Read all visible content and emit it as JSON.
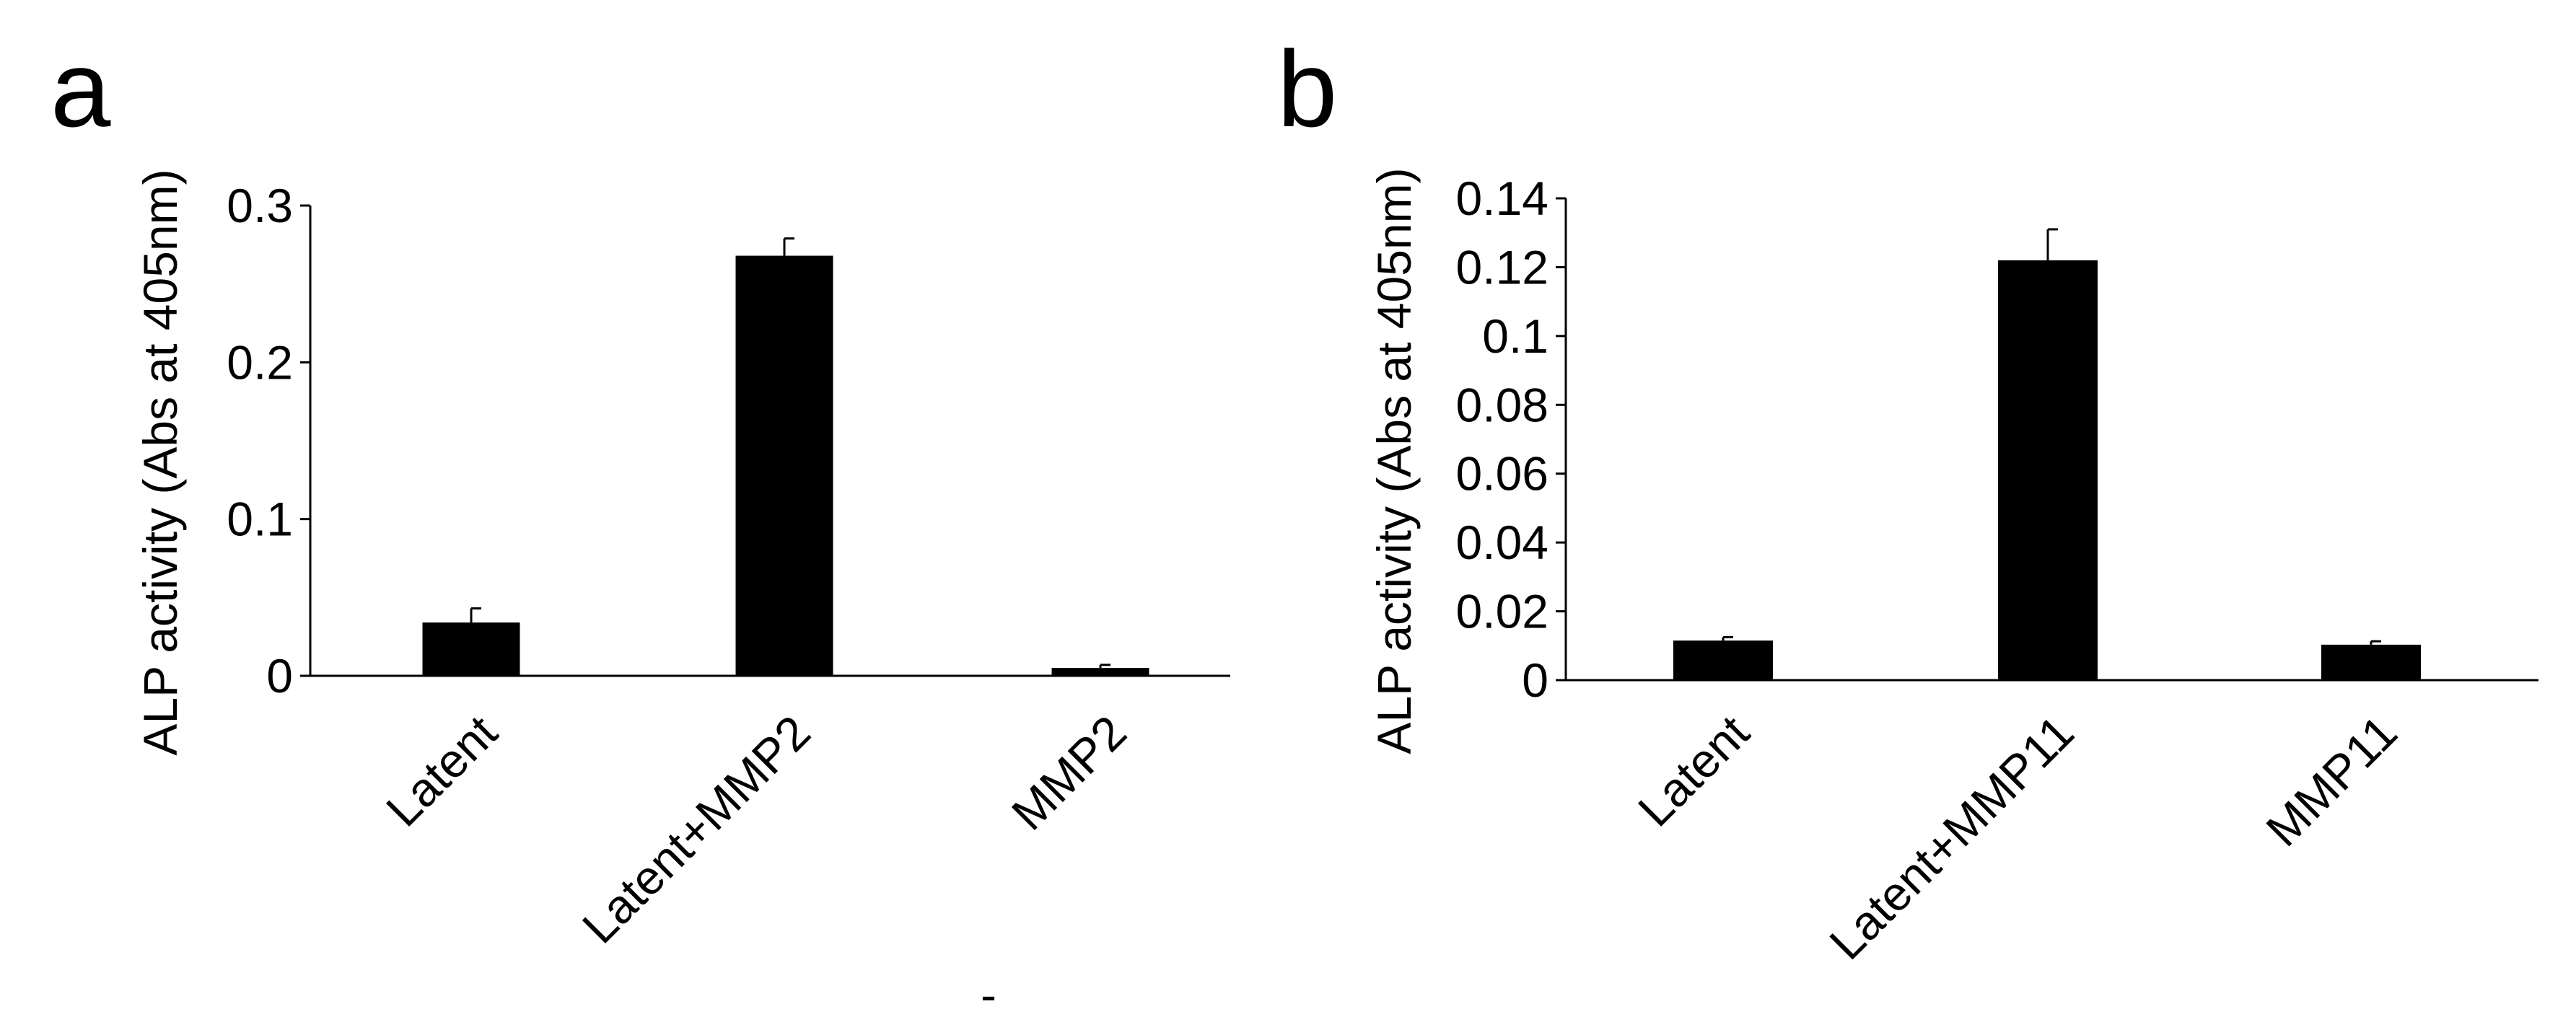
{
  "chart_data": [
    {
      "type": "bar",
      "panel_label": "a",
      "ylabel": "ALP activity (Abs at 405nm)",
      "xlabel": "",
      "categories": [
        "Latent",
        "Latent+MMP2",
        "MMP2"
      ],
      "values": [
        0.034,
        0.268,
        0.005
      ],
      "error": [
        0.009,
        0.011,
        0.002
      ],
      "ylim": [
        0,
        0.3
      ],
      "yticks": [
        0,
        0.1,
        0.2,
        0.3
      ],
      "ytick_labels": [
        "0",
        "0.1",
        "0.2",
        "0.3"
      ],
      "grid": false,
      "bar_color": "#000000"
    },
    {
      "type": "bar",
      "panel_label": "b",
      "ylabel": "ALP activity (Abs at 405nm)",
      "xlabel": "",
      "categories": [
        "Latent",
        "Latent+MMP11",
        "MMP11"
      ],
      "values": [
        0.0115,
        0.122,
        0.0103
      ],
      "error": [
        0.001,
        0.009,
        0.001
      ],
      "ylim": [
        0,
        0.14
      ],
      "yticks": [
        0,
        0.02,
        0.04,
        0.06,
        0.08,
        0.1,
        0.12,
        0.14
      ],
      "ytick_labels": [
        "0",
        "0.02",
        "0.04",
        "0.06",
        "0.08",
        "0.1",
        "0.12",
        "0.14"
      ],
      "grid": false,
      "bar_color": "#000000"
    }
  ],
  "stray_mark": "-"
}
